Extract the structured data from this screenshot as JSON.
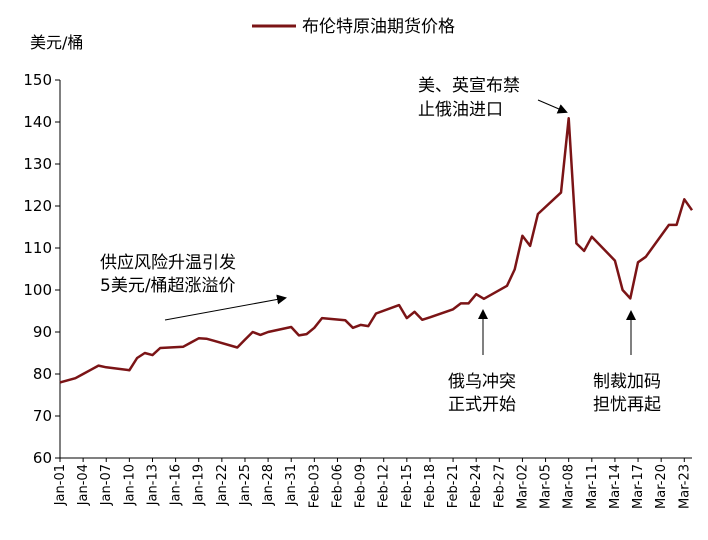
{
  "chart_data": {
    "type": "line",
    "legend_position": "top-center",
    "unit_label": "美元/桶",
    "ylim": [
      60,
      150
    ],
    "yticks": [
      60,
      70,
      80,
      90,
      100,
      110,
      120,
      130,
      140,
      150
    ],
    "xticks": [
      "Jan-01",
      "Jan-04",
      "Jan-07",
      "Jan-10",
      "Jan-13",
      "Jan-16",
      "Jan-19",
      "Jan-22",
      "Jan-25",
      "Jan-28",
      "Jan-31",
      "Feb-03",
      "Feb-06",
      "Feb-09",
      "Feb-12",
      "Feb-15",
      "Feb-18",
      "Feb-21",
      "Feb-24",
      "Feb-27",
      "Mar-02",
      "Mar-05",
      "Mar-08",
      "Mar-11",
      "Mar-14",
      "Mar-17",
      "Mar-20",
      "Mar-23"
    ],
    "color": "#7B1416",
    "series": [
      {
        "name": "布伦特原油期货价格",
        "x": [
          "Jan-01",
          "Jan-03",
          "Jan-04",
          "Jan-05",
          "Jan-06",
          "Jan-07",
          "Jan-10",
          "Jan-11",
          "Jan-12",
          "Jan-13",
          "Jan-14",
          "Jan-17",
          "Jan-18",
          "Jan-19",
          "Jan-20",
          "Jan-21",
          "Jan-24",
          "Jan-25",
          "Jan-26",
          "Jan-27",
          "Jan-28",
          "Jan-31",
          "Feb-01",
          "Feb-02",
          "Feb-03",
          "Feb-04",
          "Feb-07",
          "Feb-08",
          "Feb-09",
          "Feb-10",
          "Feb-11",
          "Feb-14",
          "Feb-15",
          "Feb-16",
          "Feb-17",
          "Feb-18",
          "Feb-21",
          "Feb-22",
          "Feb-23",
          "Feb-24",
          "Feb-25",
          "Feb-28",
          "Mar-01",
          "Mar-02",
          "Mar-03",
          "Mar-04",
          "Mar-07",
          "Mar-08",
          "Mar-09",
          "Mar-10",
          "Mar-11",
          "Mar-14",
          "Mar-15",
          "Mar-16",
          "Mar-17",
          "Mar-18",
          "Mar-21",
          "Mar-22",
          "Mar-23",
          "Mar-24"
        ],
        "y": [
          78.0,
          79.0,
          80.0,
          81.0,
          82.0,
          81.6,
          80.9,
          83.8,
          85.0,
          84.5,
          86.2,
          86.5,
          87.5,
          88.5,
          88.4,
          87.9,
          86.3,
          88.2,
          90.0,
          89.3,
          90.0,
          91.2,
          89.2,
          89.5,
          91.0,
          93.3,
          92.8,
          91.0,
          91.7,
          91.4,
          94.4,
          96.4,
          93.3,
          94.8,
          92.9,
          93.5,
          95.4,
          96.8,
          96.8,
          99.0,
          97.9,
          101.0,
          104.9,
          112.9,
          110.5,
          118.1,
          123.2,
          140.9,
          111.1,
          109.3,
          112.7,
          107.0,
          100.0,
          98.0,
          106.6,
          107.9,
          115.5,
          115.5,
          121.6,
          119.0
        ]
      }
    ],
    "annotations": [
      {
        "lines": [
          "供应风险升温引发",
          "5美元/桶超涨溢价"
        ],
        "target": "Jan-31"
      },
      {
        "lines": [
          "美、英宣布禁",
          "止俄油进口"
        ],
        "target": "Mar-08"
      },
      {
        "lines": [
          "俄乌冲突",
          "正式开始"
        ],
        "target": "Feb-24"
      },
      {
        "lines": [
          "制裁加码",
          "担忧再起"
        ],
        "target": "Mar-16"
      }
    ]
  }
}
